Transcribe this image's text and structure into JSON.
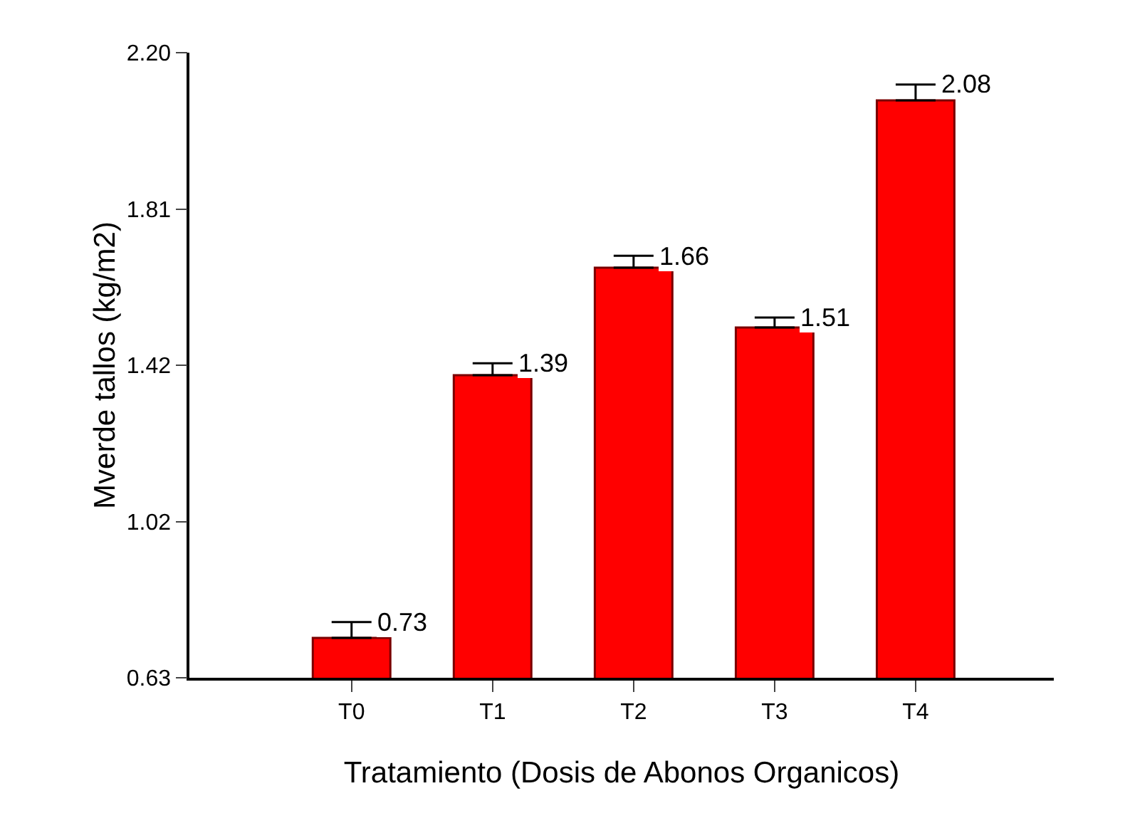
{
  "chart_data": {
    "type": "bar",
    "xlabel": "Tratamiento (Dosis de Abonos Organicos)",
    "ylabel": "Mverde tallos (kg/m2)",
    "categories": [
      "T0",
      "T1",
      "T2",
      "T3",
      "T4"
    ],
    "values": [
      0.73,
      1.39,
      1.66,
      1.51,
      2.08
    ],
    "errors": [
      [
        0.73,
        0.77
      ],
      [
        1.39,
        1.42
      ],
      [
        1.66,
        1.69
      ],
      [
        1.51,
        1.535
      ],
      [
        2.08,
        2.12
      ]
    ],
    "color": "#ff0000",
    "data_labels": true,
    "ylim": [
      0.63,
      2.2
    ],
    "yticks": [
      0.63,
      {
        "value": 1.0225,
        "label": "1.02"
      },
      {
        "value": 1.415,
        "label": "1.42"
      },
      {
        "value": 1.8075,
        "label": "1.81"
      },
      {
        "value": 2.2,
        "label": "2.20"
      }
    ],
    "grid": false
  }
}
